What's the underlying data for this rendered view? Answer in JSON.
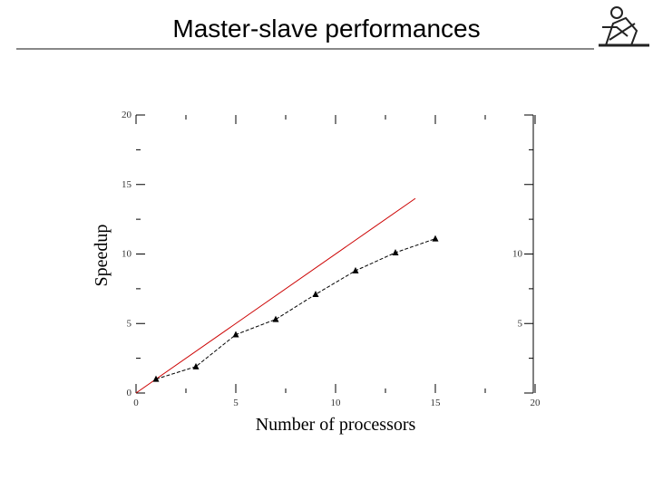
{
  "title": "Master-slave performances",
  "chart_data": {
    "type": "line",
    "xlabel": "Number of processors",
    "ylabel": "Speedup",
    "xlim": [
      0,
      20
    ],
    "ylim": [
      0,
      20
    ],
    "xticks": [
      0,
      5,
      10,
      15,
      20
    ],
    "yticks": [
      0,
      5,
      10,
      15,
      20
    ],
    "series": [
      {
        "color": "#cc0000",
        "x": [
          0,
          14
        ],
        "values": [
          0,
          14
        ],
        "marker": "none"
      },
      {
        "color": "#000000",
        "x": [
          1,
          3,
          5,
          7,
          9,
          11,
          13,
          15
        ],
        "values": [
          1,
          1.9,
          4.2,
          5.3,
          7.1,
          8.8,
          10.1,
          11.1
        ],
        "marker": "triangle"
      }
    ]
  }
}
